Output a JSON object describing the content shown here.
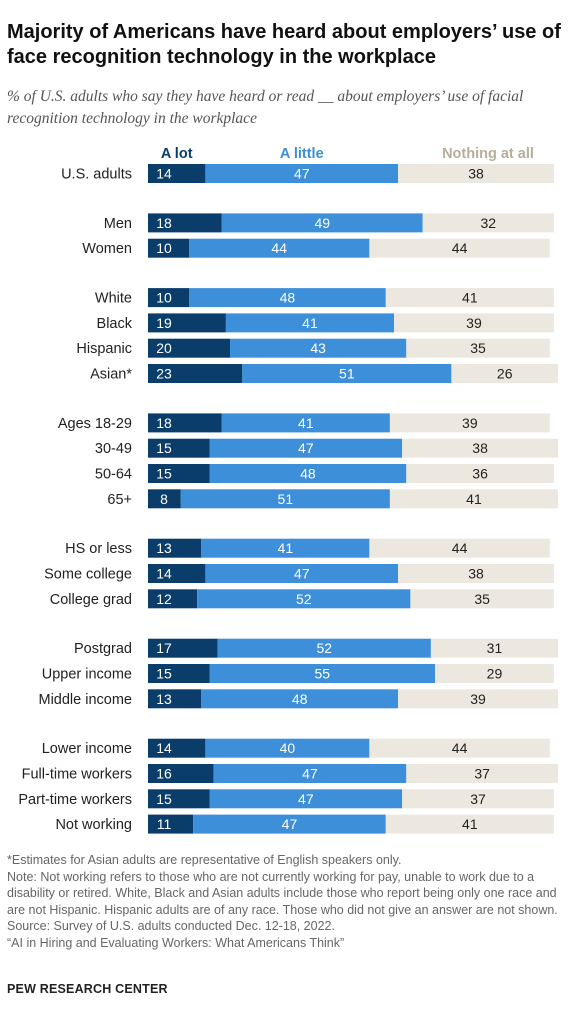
{
  "title": "Majority of Americans have heard about employers’ use of face recognition technology in the workplace",
  "subtitle": "% of U.S. adults who say they have heard or read __ about employers’ use of facial recognition technology in the workplace",
  "colors": {
    "a_lot": "#0b3d6b",
    "a_little": "#3d8fd9",
    "nothing": "#ece8df"
  },
  "chart_data": {
    "type": "bar",
    "orientation": "horizontal",
    "stacked": true,
    "xlim": [
      0,
      100
    ],
    "series": [
      {
        "name": "A lot",
        "values": [
          14,
          18,
          10,
          10,
          19,
          20,
          23,
          18,
          15,
          15,
          8,
          13,
          14,
          12,
          17,
          15,
          13,
          14,
          16,
          15,
          11
        ]
      },
      {
        "name": "A little",
        "values": [
          47,
          49,
          44,
          48,
          41,
          43,
          51,
          41,
          47,
          48,
          51,
          41,
          47,
          52,
          52,
          55,
          48,
          40,
          47,
          47,
          47
        ]
      },
      {
        "name": "Nothing at all",
        "values": [
          38,
          32,
          44,
          41,
          39,
          35,
          26,
          39,
          38,
          36,
          41,
          44,
          38,
          35,
          31,
          29,
          39,
          44,
          37,
          37,
          41
        ]
      }
    ],
    "categories": [
      "U.S. adults",
      "Men",
      "Women",
      "White",
      "Black",
      "Hispanic",
      "Asian*",
      "Ages 18-29",
      "30-49",
      "50-64",
      "65+",
      "HS or less",
      "Some college",
      "College grad",
      "Postgrad",
      "Upper income",
      "Middle income",
      "Lower income",
      "Full-time workers",
      "Part-time workers",
      "Not working"
    ],
    "groups": [
      1,
      2,
      4,
      4,
      3,
      3,
      4
    ],
    "legend": "top, column headers above bars"
  },
  "notes": [
    "*Estimates for Asian adults are representative of English speakers only.",
    "Note: Not working refers to those who are not currently working for pay, unable to work due to a disability or retired. White, Black and Asian adults include those who report being only one race and are not Hispanic. Hispanic adults are of any race. Those who did not give an answer are not shown.",
    "Source: Survey of U.S. adults conducted Dec. 12-18, 2022.",
    "“AI in Hiring and Evaluating Workers: What Americans Think”"
  ],
  "footer": "PEW RESEARCH CENTER"
}
